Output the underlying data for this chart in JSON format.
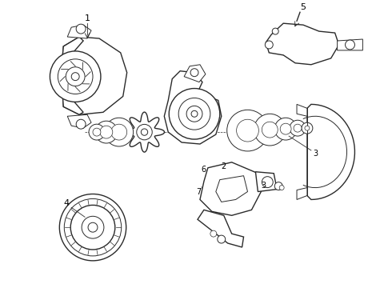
{
  "bg_color": "#ffffff",
  "line_color": "#2a2a2a",
  "figsize": [
    4.9,
    3.6
  ],
  "dpi": 100,
  "lw_main": 1.0,
  "lw_detail": 0.7,
  "lw_thin": 0.5
}
